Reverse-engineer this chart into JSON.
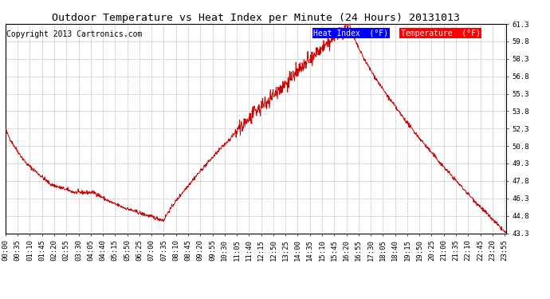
{
  "title": "Outdoor Temperature vs Heat Index per Minute (24 Hours) 20131013",
  "copyright": "Copyright 2013 Cartronics.com",
  "legend_heat_index": "Heat Index  (°F)",
  "legend_temperature": "Temperature  (°F)",
  "line_color": "#cc0000",
  "background_color": "#ffffff",
  "grid_color": "#aaaaaa",
  "ylim_min": 43.3,
  "ylim_max": 61.3,
  "yticks": [
    43.3,
    44.8,
    46.3,
    47.8,
    49.3,
    50.8,
    52.3,
    53.8,
    55.3,
    56.8,
    58.3,
    59.8,
    61.3
  ],
  "title_fontsize": 9.5,
  "copyright_fontsize": 7,
  "tick_fontsize": 6.5,
  "legend_fontsize": 7
}
